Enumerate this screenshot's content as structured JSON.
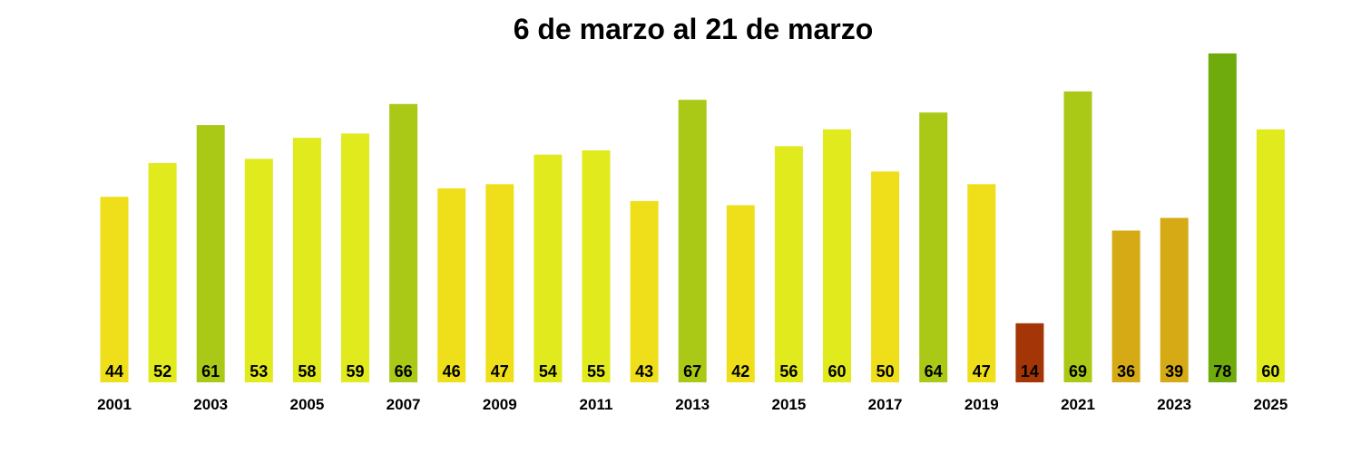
{
  "chart_data": {
    "type": "bar",
    "title": "6 de marzo al 21 de marzo",
    "xlabel": "",
    "ylabel": "",
    "categories": [
      "2001",
      "2002",
      "2003",
      "2004",
      "2005",
      "2006",
      "2007",
      "2008",
      "2009",
      "2010",
      "2011",
      "2012",
      "2013",
      "2014",
      "2015",
      "2016",
      "2017",
      "2018",
      "2019",
      "2020",
      "2021",
      "2022",
      "2023",
      "2024",
      "2025"
    ],
    "tick_labels": [
      "2001",
      "",
      "2003",
      "",
      "2005",
      "",
      "2007",
      "",
      "2009",
      "",
      "2011",
      "",
      "2013",
      "",
      "2015",
      "",
      "2017",
      "",
      "2019",
      "",
      "2021",
      "",
      "2023",
      "",
      "2025"
    ],
    "values": [
      44,
      52,
      61,
      53,
      58,
      59,
      66,
      46,
      47,
      54,
      55,
      43,
      67,
      42,
      56,
      60,
      50,
      64,
      47,
      14,
      69,
      36,
      39,
      78,
      60
    ],
    "ylim": [
      0,
      78
    ],
    "grid": false,
    "legend": "none",
    "colors": {
      "very_low": "#a33506",
      "low": "#d6aa14",
      "mid": "#efdf1a",
      "mid_high": "#e0ea1c",
      "high": "#aac916",
      "very_high": "#6fab0d"
    }
  }
}
